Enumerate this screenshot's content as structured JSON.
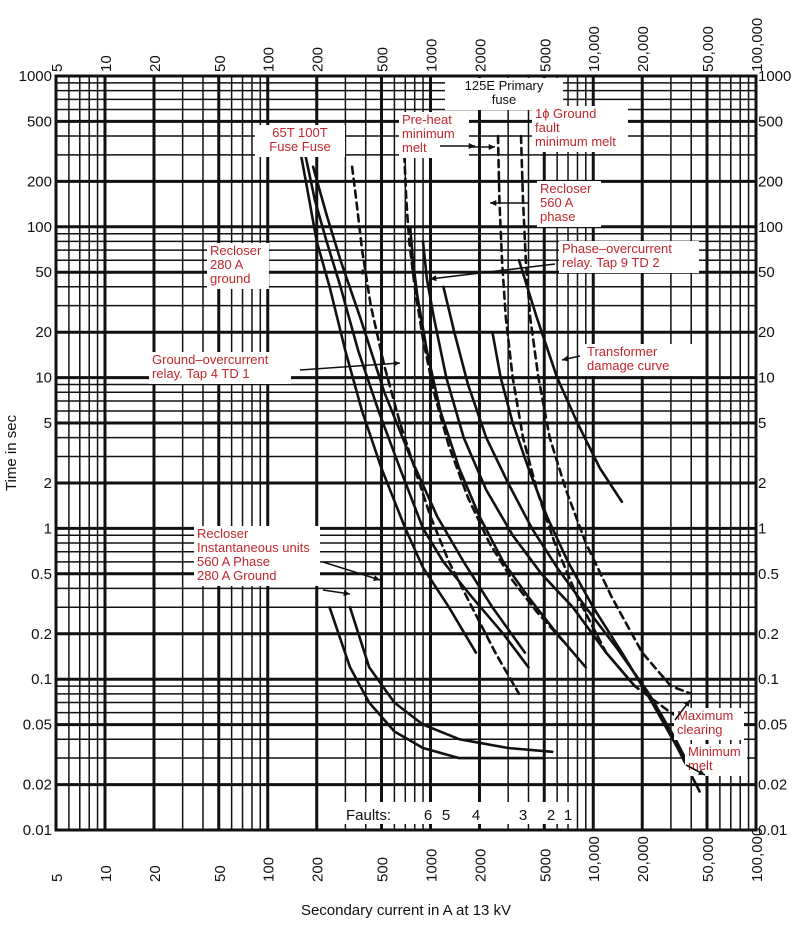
{
  "chart_data": {
    "type": "line",
    "title": "",
    "xlabel": "Secondary current in A at 13 kV",
    "ylabel": "Time in sec",
    "x_scale": "log",
    "y_scale": "log",
    "xlim": [
      5,
      100000
    ],
    "ylim": [
      0.01,
      1000
    ],
    "grid": true,
    "x_ticks": [
      "5",
      "10",
      "20",
      "50",
      "100",
      "200",
      "500",
      "1000",
      "2000",
      "5000",
      "10,000",
      "20,000",
      "50,000",
      "100,000"
    ],
    "y_ticks": [
      "1000",
      "500",
      "200",
      "100",
      "50",
      "20",
      "10",
      "5",
      "2",
      "1",
      "0.5",
      "0.2",
      "0.1",
      "0.05",
      "0.02",
      "0.01"
    ],
    "colors": {
      "curve": "#111111",
      "grid": "#111111",
      "annotation": "#c0272d",
      "text": "#111111"
    },
    "annotations": [
      {
        "id": "primary-fuse",
        "text": "125E Primary fuse",
        "color": "#111111"
      },
      {
        "id": "fuse-65t",
        "text": "65T 100T Fuse Fuse",
        "color": "#c0272d"
      },
      {
        "id": "preheat",
        "text": "Pre-heat minimum melt",
        "color": "#c0272d"
      },
      {
        "id": "ground-fault",
        "text": "1ɸ Ground fault minimum melt",
        "color": "#c0272d"
      },
      {
        "id": "recloser-phase",
        "text": "Recloser 560 A phase",
        "color": "#c0272d"
      },
      {
        "id": "recloser-ground",
        "text": "Recloser 280 A ground",
        "color": "#c0272d"
      },
      {
        "id": "phase-relay",
        "text": "Phase–overcurrent relay. Tap 9 TD 2",
        "color": "#c0272d"
      },
      {
        "id": "transformer-damage",
        "text": "Transformer damage curve",
        "color": "#c0272d"
      },
      {
        "id": "ground-relay",
        "text": "Ground–overcurrent relay. Tap 4 TD 1",
        "color": "#c0272d"
      },
      {
        "id": "recloser-inst",
        "text": "Recloser Instantaneous units 560 A Phase 280 A Ground",
        "color": "#c0272d"
      },
      {
        "id": "max-clearing",
        "text": "Maximum clearing",
        "color": "#c0272d"
      },
      {
        "id": "min-melt",
        "text": "Minimum melt",
        "color": "#c0272d"
      }
    ],
    "faults": {
      "label": "Faults:",
      "numbers": [
        "6",
        "5",
        "4",
        "3",
        "2",
        "1"
      ],
      "values": [
        800,
        1000,
        1600,
        3500,
        5600,
        6700
      ]
    },
    "series": [
      {
        "style": "solid",
        "points": [
          [
            160,
            300
          ],
          [
            180,
            150
          ],
          [
            200,
            80
          ],
          [
            240,
            40
          ],
          [
            300,
            15
          ],
          [
            380,
            6
          ],
          [
            500,
            2.5
          ],
          [
            700,
            1
          ],
          [
            900,
            0.55
          ],
          [
            1300,
            0.3
          ],
          [
            1900,
            0.15
          ]
        ]
      },
      {
        "style": "solid",
        "points": [
          [
            170,
            300
          ],
          [
            195,
            150
          ],
          [
            230,
            80
          ],
          [
            280,
            40
          ],
          [
            360,
            15
          ],
          [
            480,
            6
          ],
          [
            650,
            2.5
          ],
          [
            900,
            1
          ],
          [
            1200,
            0.6
          ],
          [
            1800,
            0.35
          ],
          [
            2800,
            0.2
          ],
          [
            4000,
            0.12
          ]
        ]
      },
      {
        "style": "solid",
        "points": [
          [
            190,
            250
          ],
          [
            230,
            120
          ],
          [
            280,
            60
          ],
          [
            370,
            25
          ],
          [
            520,
            8
          ],
          [
            750,
            3
          ],
          [
            1100,
            1.2
          ],
          [
            1600,
            0.6
          ],
          [
            2400,
            0.3
          ],
          [
            3800,
            0.15
          ]
        ]
      },
      {
        "style": "dashed",
        "points": [
          [
            330,
            250
          ],
          [
            350,
            150
          ],
          [
            380,
            70
          ],
          [
            430,
            30
          ],
          [
            520,
            12
          ],
          [
            650,
            5
          ],
          [
            800,
            2.5
          ],
          [
            1000,
            1.2
          ],
          [
            1300,
            0.6
          ],
          [
            1800,
            0.3
          ],
          [
            2500,
            0.15
          ],
          [
            3500,
            0.08
          ]
        ]
      },
      {
        "style": "dashed",
        "points": [
          [
            690,
            300
          ],
          [
            710,
            150
          ],
          [
            740,
            80
          ],
          [
            800,
            40
          ],
          [
            900,
            18
          ],
          [
            1050,
            8
          ],
          [
            1300,
            3.5
          ],
          [
            1700,
            1.6
          ],
          [
            2300,
            0.8
          ],
          [
            3200,
            0.45
          ],
          [
            4500,
            0.28
          ],
          [
            6500,
            0.18
          ]
        ]
      },
      {
        "style": "solid",
        "points": [
          [
            750,
            100
          ],
          [
            780,
            60
          ],
          [
            830,
            35
          ],
          [
            950,
            15
          ],
          [
            1150,
            6
          ],
          [
            1500,
            2.5
          ],
          [
            2000,
            1.2
          ],
          [
            2800,
            0.6
          ],
          [
            4000,
            0.35
          ],
          [
            6000,
            0.2
          ],
          [
            9000,
            0.12
          ]
        ]
      },
      {
        "style": "solid",
        "points": [
          [
            900,
            80
          ],
          [
            950,
            45
          ],
          [
            1050,
            25
          ],
          [
            1250,
            10
          ],
          [
            1600,
            4
          ],
          [
            2200,
            1.8
          ],
          [
            3200,
            0.9
          ],
          [
            4800,
            0.5
          ],
          [
            7500,
            0.3
          ],
          [
            12000,
            0.15
          ],
          [
            18000,
            0.09
          ]
        ]
      },
      {
        "style": "solid",
        "points": [
          [
            1200,
            40
          ],
          [
            1400,
            20
          ],
          [
            1700,
            9
          ],
          [
            2200,
            4
          ],
          [
            3000,
            2
          ],
          [
            4200,
            1
          ],
          [
            6000,
            0.55
          ],
          [
            9000,
            0.3
          ],
          [
            14000,
            0.16
          ],
          [
            22000,
            0.08
          ],
          [
            32000,
            0.04
          ],
          [
            40000,
            0.025
          ]
        ]
      },
      {
        "style": "solid",
        "points": [
          [
            2400,
            20
          ],
          [
            2700,
            10
          ],
          [
            3200,
            5
          ],
          [
            4000,
            2.5
          ],
          [
            5200,
            1.2
          ],
          [
            7000,
            0.6
          ],
          [
            10000,
            0.3
          ],
          [
            15000,
            0.15
          ],
          [
            23000,
            0.07
          ],
          [
            33000,
            0.035
          ],
          [
            45000,
            0.018
          ]
        ]
      },
      {
        "style": "dashed",
        "points": [
          [
            2600,
            400
          ],
          [
            2650,
            150
          ],
          [
            2750,
            60
          ],
          [
            2900,
            25
          ],
          [
            3200,
            10
          ],
          [
            3700,
            4
          ],
          [
            4500,
            1.8
          ],
          [
            5800,
            0.8
          ],
          [
            8000,
            0.35
          ],
          [
            12000,
            0.15
          ],
          [
            18000,
            0.09
          ],
          [
            30000,
            0.06
          ],
          [
            40000,
            0.05
          ]
        ]
      },
      {
        "style": "dashed",
        "points": [
          [
            3600,
            400
          ],
          [
            3700,
            150
          ],
          [
            3850,
            60
          ],
          [
            4100,
            25
          ],
          [
            4600,
            10
          ],
          [
            5400,
            4
          ],
          [
            6800,
            1.8
          ],
          [
            9000,
            0.8
          ],
          [
            13000,
            0.35
          ],
          [
            20000,
            0.15
          ],
          [
            30000,
            0.09
          ],
          [
            40000,
            0.08
          ]
        ]
      },
      {
        "style": "solid",
        "points": [
          [
            3500,
            60
          ],
          [
            4500,
            25
          ],
          [
            6000,
            10
          ],
          [
            8000,
            5
          ],
          [
            11000,
            2.5
          ],
          [
            15000,
            1.5
          ]
        ]
      },
      {
        "style": "solid",
        "points": [
          [
            240,
            0.3
          ],
          [
            320,
            0.12
          ],
          [
            420,
            0.07
          ],
          [
            600,
            0.045
          ],
          [
            900,
            0.035
          ],
          [
            1500,
            0.03
          ],
          [
            3000,
            0.03
          ],
          [
            5000,
            0.03
          ]
        ]
      },
      {
        "style": "solid",
        "points": [
          [
            320,
            0.3
          ],
          [
            420,
            0.12
          ],
          [
            600,
            0.07
          ],
          [
            900,
            0.05
          ],
          [
            1500,
            0.04
          ],
          [
            3000,
            0.035
          ],
          [
            5600,
            0.033
          ]
        ]
      }
    ]
  }
}
